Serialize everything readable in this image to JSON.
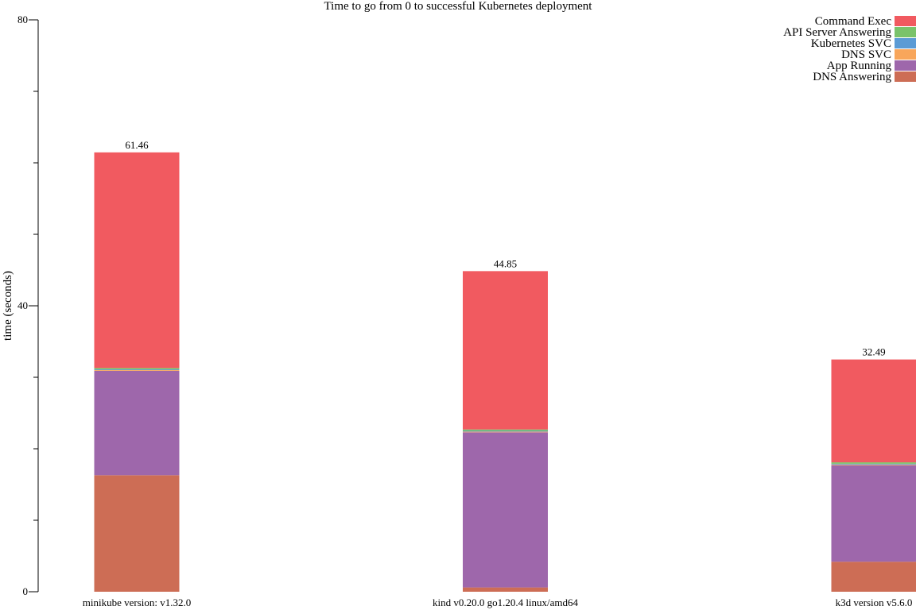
{
  "chart_data": {
    "type": "bar",
    "stacked": true,
    "title": "Time to go from 0 to successful Kubernetes deployment",
    "ylabel": "time (seconds)",
    "xlabel": "",
    "ylim": [
      0,
      80
    ],
    "yticks": [
      0,
      40,
      80
    ],
    "grid": false,
    "legend_position": "top-right",
    "categories": [
      "minikube version: v1.32.0",
      "kind v0.20.0 go1.20.4 linux/amd64",
      "k3d version v5.6.0"
    ],
    "totals": [
      "61.46",
      "44.85",
      "32.49"
    ],
    "series": [
      {
        "name": "DNS Answering",
        "color": "#cd6d55",
        "values": [
          16.3,
          0.6,
          4.2
        ]
      },
      {
        "name": "App Running",
        "color": "#9e67ab",
        "values": [
          14.6,
          21.7,
          13.5
        ]
      },
      {
        "name": "DNS SVC",
        "color": "#f8a65b",
        "values": [
          0.1,
          0.1,
          0.1
        ]
      },
      {
        "name": "Kubernetes SVC",
        "color": "#5b9bd5",
        "values": [
          0.1,
          0.1,
          0.1
        ]
      },
      {
        "name": "API Server Answering",
        "color": "#7ac36a",
        "values": [
          0.2,
          0.2,
          0.2
        ]
      },
      {
        "name": "Command Exec",
        "color": "#f15a60",
        "values": [
          30.16,
          22.15,
          14.39
        ]
      }
    ],
    "legend_order": [
      "Command Exec",
      "API Server Answering",
      "Kubernetes SVC",
      "DNS SVC",
      "App Running",
      "DNS Answering"
    ]
  }
}
